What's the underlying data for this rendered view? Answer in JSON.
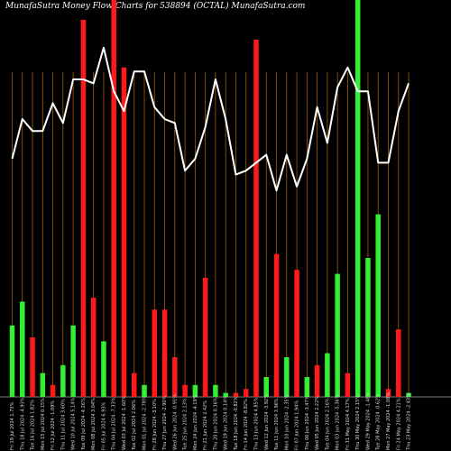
{
  "header": {
    "title": "MunafaSutra  Money Flow  Charts for 538894                    (OCTAL) MunafaSutra.com"
  },
  "chart_data": {
    "type": "bar",
    "title": "MunafaSutra  Money Flow  Charts for 538894                    (OCTAL) MunafaSutra.com",
    "xlabel": "",
    "ylabel": "",
    "ylim": [
      0,
      100
    ],
    "grid": true,
    "colors": {
      "up": "#33ee33",
      "down": "#ff1a1a",
      "line": "#ffffff",
      "grid": "#a0600a",
      "background": "#000000"
    },
    "categories": [
      "Fri 19 Jul 2024 1.73%",
      "Thu 18 Jul 2024 -4.93%",
      "Tue 16 Jul 2024 1.82%",
      "Mon 15 Jul 2024 0.15%",
      "Fri 12 Jul 2024 -1.09%",
      "Thu 11 Jul 2024 3.60%",
      "Wed 10 Jul 2024 5.14%",
      "Tue 09 Jul 2024 -4.26%",
      "Mon 08 Jul 2024 3.04%",
      "Fri 05 Jul 2024 6.93%",
      "Thu 04 Jul 2024 -7.33%",
      "Wed 03 Jul 2024 -1.60%",
      "Tue 02 Jul 2024 2.06%",
      "Mon 01 Jul 2024 -2.78%",
      "Fri 28 Jun 2024 -3.10%",
      "Thu 27 Jun 2024 -2.90%",
      "Wed 26 Jun 2024 -0.91%",
      "Tue 25 Jun 2024 2.13%",
      "Mon 24 Jun 2024 -4.19%",
      "Fri 21 Jun 2024 2.42%",
      "Thu 20 Jun 2024 0.36%",
      "Wed 19 Jun 2024 0.14%",
      "Tue 18 Jun 2024 -0.82%",
      "Fri 14 Jun 2024 -8.82%",
      "Thu 13 Jun 2024 4.85%",
      "Wed 12 Jun 2024 -3.92%",
      "Tue 11 Jun 2024 3.96%",
      "Mon 10 Jun 2024 -2.35%",
      "Fri 07 Jun 2024 1.94%",
      "Thu 06 Jun 2024 -3.47%",
      "Wed 05 Jun 2024 2.22%",
      "Tue 04 Jun 2024 2.16%",
      "Mon 03 Jun 2024 -5.36%",
      "Fri 31 May 2024 4.17%",
      "Thu 30 May 2024 2.15%",
      "Wed 29 May 2024 -1.48%",
      "Tue 28 May 2024 -0.62%",
      "Mon 27 May 2024 -1.08%",
      "Fri 24 May 2024 4.21%",
      "Thu 23 May 2024 -2.43%"
    ],
    "series": [
      {
        "values": [
          18,
          24,
          15,
          6,
          3,
          8,
          18,
          95,
          25,
          14,
          100,
          83,
          6,
          3,
          22,
          22,
          10,
          3,
          3,
          30,
          3,
          1,
          1,
          2,
          90,
          5,
          36,
          10,
          32,
          5,
          8,
          11,
          31,
          6,
          100,
          35,
          46,
          2,
          17,
          1
        ]
      },
      {
        "values": [
          60,
          70,
          67,
          67,
          74,
          69,
          80,
          80,
          79,
          88,
          77,
          72,
          82,
          82,
          73,
          70,
          69,
          57,
          60,
          68,
          80,
          70,
          56,
          57,
          59,
          61,
          52,
          61,
          53,
          60,
          73,
          64,
          78,
          83,
          77,
          77,
          59,
          59,
          72,
          79
        ]
      }
    ],
    "bar_colors": [
      "up",
      "up",
      "down",
      "up",
      "down",
      "up",
      "up",
      "down",
      "down",
      "up",
      "down",
      "down",
      "down",
      "up",
      "down",
      "down",
      "down",
      "down",
      "up",
      "down",
      "up",
      "up",
      "down",
      "down",
      "down",
      "up",
      "down",
      "up",
      "down",
      "up",
      "down",
      "up",
      "up",
      "down",
      "up",
      "up",
      "up",
      "down",
      "down",
      "up"
    ]
  }
}
